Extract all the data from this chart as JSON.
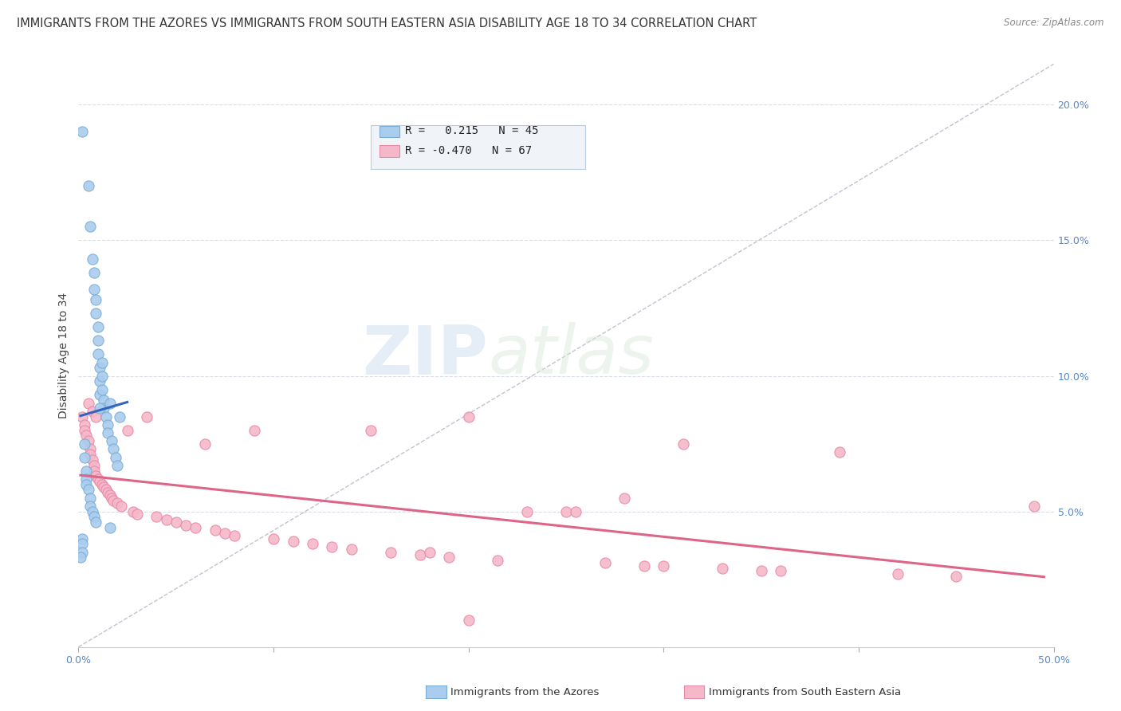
{
  "title": "IMMIGRANTS FROM THE AZORES VS IMMIGRANTS FROM SOUTH EASTERN ASIA DISABILITY AGE 18 TO 34 CORRELATION CHART",
  "source": "Source: ZipAtlas.com",
  "ylabel": "Disability Age 18 to 34",
  "watermark_zip": "ZIP",
  "watermark_atlas": "atlas",
  "xmin": 0.0,
  "xmax": 0.5,
  "ymin": 0.0,
  "ymax": 0.215,
  "yticks": [
    0.05,
    0.1,
    0.15,
    0.2
  ],
  "ytick_labels": [
    "5.0%",
    "10.0%",
    "15.0%",
    "20.0%"
  ],
  "xticks": [
    0.0,
    0.1,
    0.2,
    0.3,
    0.4,
    0.5
  ],
  "xtick_labels": [
    "0.0%",
    "",
    "",
    "",
    "",
    "50.0%"
  ],
  "azores_color": "#aaccee",
  "azores_edge": "#7aadd4",
  "sea_color": "#f5b8c8",
  "sea_edge": "#e888a8",
  "trend_azores_color": "#3366bb",
  "trend_sea_color": "#dd6688",
  "ref_line_color": "#bbbbcc",
  "background_color": "#ffffff",
  "grid_color": "#d8dde8",
  "legend_box_color": "#ddddee",
  "azores_x": [
    0.002,
    0.005,
    0.006,
    0.007,
    0.008,
    0.008,
    0.009,
    0.009,
    0.01,
    0.01,
    0.01,
    0.011,
    0.011,
    0.011,
    0.012,
    0.012,
    0.012,
    0.013,
    0.013,
    0.014,
    0.015,
    0.015,
    0.016,
    0.017,
    0.018,
    0.019,
    0.02,
    0.021,
    0.003,
    0.003,
    0.004,
    0.004,
    0.004,
    0.005,
    0.006,
    0.006,
    0.007,
    0.008,
    0.009,
    0.011,
    0.016,
    0.002,
    0.002,
    0.002,
    0.001
  ],
  "azores_y": [
    0.19,
    0.17,
    0.155,
    0.143,
    0.138,
    0.132,
    0.128,
    0.123,
    0.118,
    0.113,
    0.108,
    0.103,
    0.098,
    0.093,
    0.105,
    0.1,
    0.095,
    0.091,
    0.088,
    0.085,
    0.082,
    0.079,
    0.09,
    0.076,
    0.073,
    0.07,
    0.067,
    0.085,
    0.075,
    0.07,
    0.065,
    0.062,
    0.06,
    0.058,
    0.055,
    0.052,
    0.05,
    0.048,
    0.046,
    0.088,
    0.044,
    0.04,
    0.038,
    0.035,
    0.033
  ],
  "sea_x": [
    0.002,
    0.003,
    0.003,
    0.004,
    0.005,
    0.005,
    0.006,
    0.006,
    0.007,
    0.007,
    0.008,
    0.008,
    0.009,
    0.009,
    0.01,
    0.011,
    0.012,
    0.013,
    0.014,
    0.015,
    0.016,
    0.017,
    0.018,
    0.02,
    0.022,
    0.025,
    0.028,
    0.03,
    0.035,
    0.04,
    0.045,
    0.05,
    0.055,
    0.06,
    0.065,
    0.07,
    0.075,
    0.08,
    0.09,
    0.1,
    0.11,
    0.12,
    0.13,
    0.14,
    0.15,
    0.16,
    0.175,
    0.19,
    0.2,
    0.215,
    0.23,
    0.25,
    0.27,
    0.29,
    0.31,
    0.33,
    0.36,
    0.39,
    0.42,
    0.45,
    0.28,
    0.3,
    0.35,
    0.255,
    0.18,
    0.2,
    0.49
  ],
  "sea_y": [
    0.085,
    0.082,
    0.08,
    0.078,
    0.076,
    0.09,
    0.073,
    0.071,
    0.069,
    0.087,
    0.067,
    0.065,
    0.063,
    0.085,
    0.062,
    0.061,
    0.06,
    0.059,
    0.058,
    0.057,
    0.056,
    0.055,
    0.054,
    0.053,
    0.052,
    0.08,
    0.05,
    0.049,
    0.085,
    0.048,
    0.047,
    0.046,
    0.045,
    0.044,
    0.075,
    0.043,
    0.042,
    0.041,
    0.08,
    0.04,
    0.039,
    0.038,
    0.037,
    0.036,
    0.08,
    0.035,
    0.034,
    0.033,
    0.085,
    0.032,
    0.05,
    0.05,
    0.031,
    0.03,
    0.075,
    0.029,
    0.028,
    0.072,
    0.027,
    0.026,
    0.055,
    0.03,
    0.028,
    0.05,
    0.035,
    0.01,
    0.052
  ],
  "legend_azores_label": "R =   0.215   N = 45",
  "legend_sea_label": "R = -0.470   N = 67",
  "bottom_label_azores": "Immigrants from the Azores",
  "bottom_label_sea": "Immigrants from South Eastern Asia"
}
